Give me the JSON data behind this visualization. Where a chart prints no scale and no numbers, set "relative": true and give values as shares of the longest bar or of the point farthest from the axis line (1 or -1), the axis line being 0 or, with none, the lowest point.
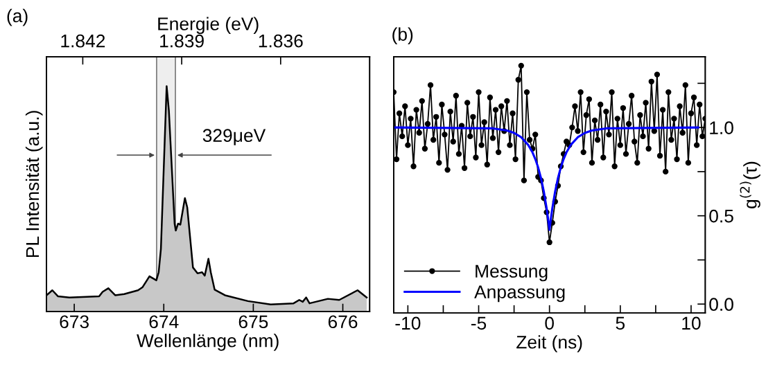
{
  "chart_data": [
    {
      "type": "area",
      "relative": true,
      "xlabel": "Wellenlänge (nm)",
      "ylabel": "PL Intensität (a.u.)",
      "x2label": "Energie (eV)",
      "xlim": [
        672.69,
        676.3
      ],
      "xticks": [
        673,
        674,
        675,
        676
      ],
      "x2lim": [
        1.8431,
        1.8333
      ],
      "x2ticks": [
        {
          "value": 1.842,
          "label": "1.842"
        },
        {
          "value": 1.839,
          "label": "1.839"
        },
        {
          "value": 1.836,
          "label": "1.836"
        }
      ],
      "tick_labels": "x",
      "bands": [
        {
          "axis": "x",
          "from": 673.92,
          "to": 674.13,
          "color": "#eeeeee"
        }
      ],
      "annotations": [
        "(a)",
        "329μeV"
      ],
      "series": [
        {
          "color": "#c8c8c8",
          "x": [
            672.691,
            672.755,
            672.819,
            672.946,
            673.278,
            673.317,
            673.381,
            673.457,
            673.559,
            673.713,
            673.764,
            673.84,
            673.917,
            673.943,
            673.968,
            674.032,
            674.057,
            674.121,
            674.134,
            674.16,
            674.185,
            674.236,
            674.262,
            674.326,
            674.377,
            674.428,
            674.458,
            674.499,
            674.525,
            674.568,
            674.683,
            674.939,
            675.194,
            675.45,
            675.513,
            675.552,
            675.59,
            675.628,
            675.833,
            675.96,
            676.165,
            676.267
          ],
          "values": [
            0.072,
            0.094,
            0.067,
            0.062,
            0.067,
            0.087,
            0.103,
            0.072,
            0.077,
            0.094,
            0.108,
            0.156,
            0.138,
            0.174,
            0.277,
            1.0,
            0.892,
            0.39,
            0.359,
            0.39,
            0.385,
            0.503,
            0.462,
            0.195,
            0.169,
            0.174,
            0.159,
            0.234,
            0.174,
            0.097,
            0.072,
            0.046,
            0.031,
            0.036,
            0.051,
            0.043,
            0.062,
            0.036,
            0.056,
            0.051,
            0.094,
            0.062
          ]
        }
      ]
    },
    {
      "type": "line",
      "xlabel": "Zeit (ns)",
      "y2label": "g$^{(2)}$(τ)",
      "xlim": [
        -11,
        11
      ],
      "xticks": [
        {
          "value": -10,
          "label": "-10"
        },
        {
          "value": -7.5,
          "label": null
        },
        {
          "value": -5,
          "label": "-5"
        },
        {
          "value": -2.5,
          "label": null
        },
        0,
        {
          "value": 2.5,
          "label": null
        },
        5,
        {
          "value": 7.5,
          "label": null
        },
        10
      ],
      "y2lim": [
        -0.05,
        1.4
      ],
      "y2ticks": [
        {
          "value": 0,
          "label": "0.0"
        },
        {
          "value": 0.25,
          "label": null
        },
        {
          "value": 0.5,
          "label": "0.5"
        },
        {
          "value": 0.75,
          "label": null
        },
        {
          "value": 1.0,
          "label": "1.0"
        },
        {
          "value": 1.25,
          "label": null
        }
      ],
      "legend": "bottom left",
      "annotations": [
        "(b)"
      ],
      "series": [
        {
          "name": "Messung",
          "color": "#000000",
          "marker": "circle",
          "axis": "y2",
          "x": [
            -11.0,
            -10.8,
            -10.6,
            -10.4,
            -10.2,
            -10.0,
            -9.8,
            -9.6,
            -9.4,
            -9.2,
            -9.0,
            -8.8,
            -8.6,
            -8.4,
            -8.2,
            -8.0,
            -7.8,
            -7.6,
            -7.4,
            -7.2,
            -7.0,
            -6.8,
            -6.6,
            -6.4,
            -6.2,
            -6.0,
            -5.8,
            -5.6,
            -5.4,
            -5.2,
            -5.0,
            -4.8,
            -4.6,
            -4.4,
            -4.2,
            -4.0,
            -3.8,
            -3.6,
            -3.4,
            -3.2,
            -3.0,
            -2.8,
            -2.6,
            -2.4,
            -2.2,
            -2.0,
            -1.8,
            -1.6,
            -1.4,
            -1.2,
            -1.0,
            -0.8,
            -0.6,
            -0.4,
            -0.2,
            0.0,
            0.2,
            0.4,
            0.6,
            0.8,
            1.0,
            1.2,
            1.4,
            1.6,
            1.8,
            2.0,
            2.2,
            2.4,
            2.6,
            2.8,
            3.0,
            3.2,
            3.4,
            3.6,
            3.8,
            4.0,
            4.2,
            4.4,
            4.6,
            4.8,
            5.0,
            5.2,
            5.4,
            5.6,
            5.8,
            6.0,
            6.2,
            6.4,
            6.6,
            6.8,
            7.0,
            7.2,
            7.4,
            7.6,
            7.8,
            8.0,
            8.2,
            8.4,
            8.6,
            8.8,
            9.0,
            9.2,
            9.4,
            9.6,
            9.8,
            10.0,
            10.2,
            10.4,
            10.6,
            10.8,
            11.0
          ],
          "values": [
            1.2,
            0.82,
            1.08,
            0.95,
            1.12,
            0.9,
            1.05,
            0.78,
            1.1,
            0.97,
            1.15,
            0.88,
            1.02,
            1.24,
            0.93,
            1.06,
            0.8,
            1.13,
            0.96,
            0.76,
            1.09,
            0.92,
            1.18,
            0.85,
            1.01,
            0.77,
            1.14,
            0.95,
            1.06,
            0.83,
            1.2,
            0.9,
            1.03,
            0.79,
            1.17,
            0.94,
            1.1,
            0.86,
            1.12,
            0.98,
            1.15,
            0.9,
            1.08,
            0.82,
            1.27,
            1.35,
            0.7,
            1.2,
            0.93,
            0.88,
            0.96,
            0.72,
            0.7,
            0.6,
            0.52,
            0.35,
            0.46,
            0.58,
            0.67,
            0.78,
            0.85,
            0.92,
            0.9,
            1.0,
            1.12,
            0.98,
            1.2,
            0.86,
            1.07,
            1.16,
            0.8,
            1.04,
            0.93,
            1.13,
            0.83,
            1.09,
            0.96,
            1.2,
            0.78,
            1.05,
            0.9,
            1.11,
            0.85,
            1.02,
            1.18,
            0.92,
            0.8,
            1.07,
            0.95,
            1.14,
            0.88,
            1.26,
            0.98,
            1.3,
            0.84,
            1.1,
            0.75,
            1.2,
            0.93,
            1.05,
            0.82,
            1.12,
            0.97,
            1.24,
            0.8,
            1.08,
            1.17,
            0.9,
            1.13,
            0.95,
            1.05
          ]
        },
        {
          "name": "Anpassung",
          "color": "#0000ff",
          "marker": "none",
          "axis": "y2",
          "x": [
            -10.9,
            -4,
            -3,
            -2.5,
            -2,
            -1.5,
            -1.2,
            -1,
            -0.8,
            -0.6,
            -0.4,
            -0.2,
            -0.1,
            0,
            0.1,
            0.2,
            0.4,
            0.6,
            0.8,
            1,
            1.2,
            1.5,
            2,
            2.5,
            3,
            4,
            10.5
          ],
          "values": [
            1.0,
            0.995,
            0.983,
            0.969,
            0.945,
            0.901,
            0.859,
            0.821,
            0.774,
            0.714,
            0.638,
            0.542,
            0.484,
            0.42,
            0.484,
            0.542,
            0.638,
            0.714,
            0.774,
            0.821,
            0.859,
            0.901,
            0.945,
            0.969,
            0.983,
            0.995,
            1.0
          ]
        }
      ]
    }
  ]
}
